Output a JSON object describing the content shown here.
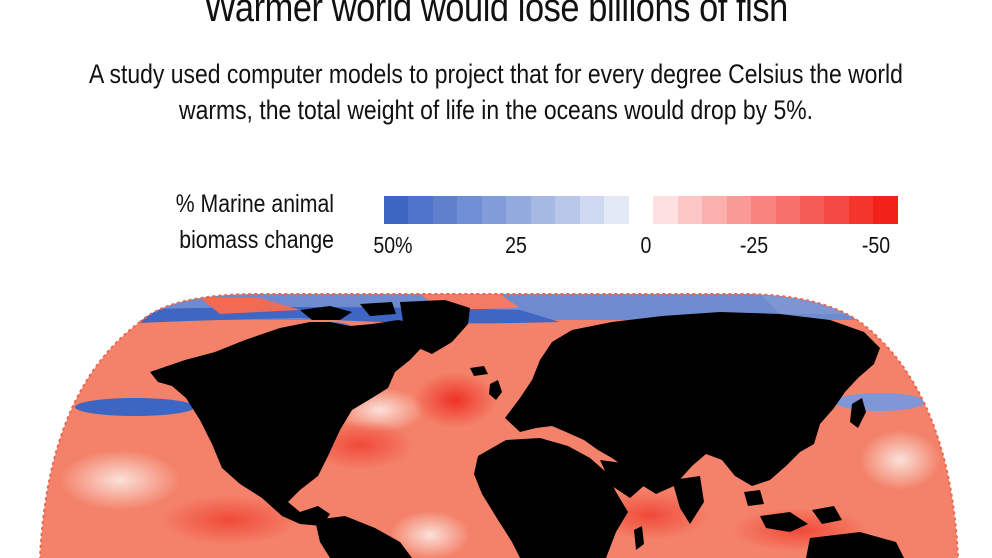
{
  "header": {
    "title": "Warmer world would lose billions of fish",
    "subtitle_line1": "A study used computer models to project that for every degree Celsius the world",
    "subtitle_line2": "warms, the total weight of life in the oceans would drop by 5%."
  },
  "legend": {
    "title_line1": "% Marine animal",
    "title_line2": "biomass change",
    "ticks": [
      {
        "label": "50%",
        "value": 50
      },
      {
        "label": "25",
        "value": 25
      },
      {
        "label": "0",
        "value": 0
      },
      {
        "label": "-25",
        "value": -25
      },
      {
        "label": "-50",
        "value": -50
      }
    ],
    "range": [
      50,
      -50
    ],
    "colors": {
      "positive": "#3d66c3",
      "neutral": "#ffffff",
      "negative": "#f2221a",
      "land": "#000000"
    }
  }
}
